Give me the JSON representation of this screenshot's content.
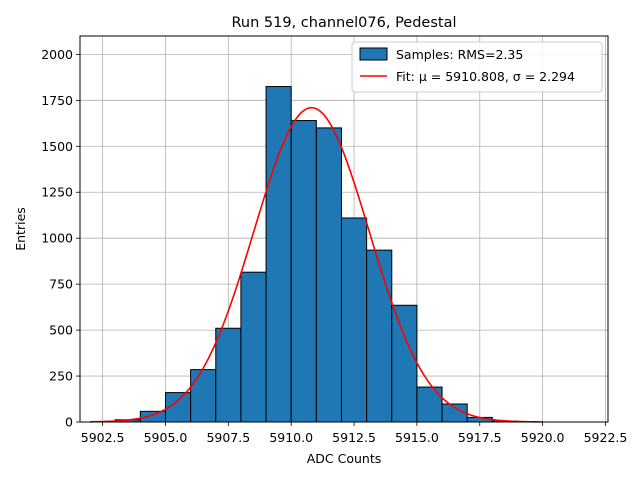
{
  "chart_data": {
    "type": "bar",
    "title": "Run 519, channel076, Pedestal",
    "xlabel": "ADC Counts",
    "ylabel": "Entries",
    "xlim": [
      5901.6,
      5922.6
    ],
    "ylim": [
      0,
      2100
    ],
    "xticks": [
      5902.5,
      5905.0,
      5907.5,
      5910.0,
      5912.5,
      5915.0,
      5917.5,
      5920.0,
      5922.5
    ],
    "xtick_labels": [
      "5902.5",
      "5905.0",
      "5907.5",
      "5910.0",
      "5912.5",
      "5915.0",
      "5917.5",
      "5920.0",
      "5922.5"
    ],
    "yticks": [
      0,
      250,
      500,
      750,
      1000,
      1250,
      1500,
      1750,
      2000
    ],
    "ytick_labels": [
      "0",
      "250",
      "500",
      "750",
      "1000",
      "1250",
      "1500",
      "1750",
      "2000"
    ],
    "grid": true,
    "legend_position": "top-right",
    "series": [
      {
        "name": "Samples: RMS=2.35",
        "type": "histogram",
        "color": "#1f77b4",
        "edge_color": "#000000",
        "bin_edges": [
          5903,
          5904,
          5905,
          5906,
          5907,
          5908,
          5909,
          5910,
          5911,
          5912,
          5913,
          5914,
          5915,
          5916,
          5917,
          5918,
          5919
        ],
        "values": [
          12,
          58,
          160,
          285,
          510,
          815,
          1825,
          1640,
          1600,
          1110,
          935,
          635,
          190,
          98,
          25,
          5
        ]
      },
      {
        "name": "Fit: μ = 5910.808, σ = 2.294",
        "type": "line",
        "color": "#ff0000",
        "mu": 5910.808,
        "sigma": 2.294,
        "amplitude": 1710,
        "x_range": [
          5902,
          5920
        ]
      }
    ]
  }
}
